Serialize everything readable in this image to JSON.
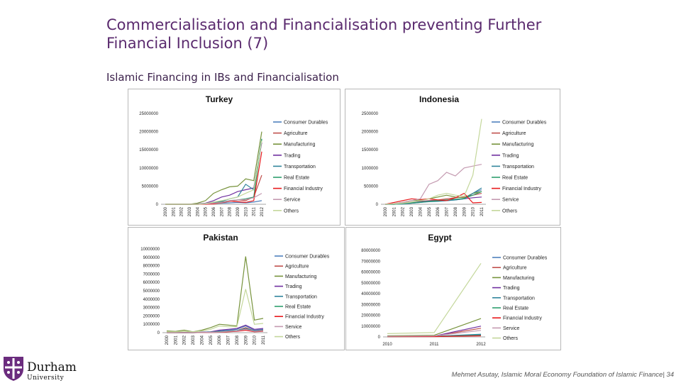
{
  "slide": {
    "title_line1": "Commercialisation and Financialisation preventing Further",
    "title_line2": "Financial Inclusion (7)",
    "subtitle": "Islamic Financing in IBs and Financialisation",
    "footer": "Mehmet Asutay, Islamic Moral Economy Foundation of Islamic Finance| 34",
    "logo_name": "Durham",
    "logo_sub": "University"
  },
  "legend": {
    "labels": [
      "Consumer Durables",
      "Agriculture",
      "Manufacturing",
      "Trading",
      "Transportation",
      "Real Estate",
      "Financial Industry",
      "Service",
      "Others"
    ],
    "colors": [
      "#4f81bd",
      "#c0504d",
      "#77933c",
      "#7030a0",
      "#31859c",
      "#2f9e6e",
      "#e8191c",
      "#c49ab0",
      "#c4d79b"
    ]
  },
  "chart_data": [
    {
      "type": "line",
      "title": "Turkey",
      "x": [
        "2000",
        "2001",
        "2002",
        "2003",
        "2004",
        "2005",
        "2006",
        "2007",
        "2008",
        "2009",
        "2010",
        "2011",
        "2012"
      ],
      "yticks": [
        "25000000",
        "20000000",
        "15000000",
        "10000000",
        "5000000",
        "0"
      ],
      "ylim": [
        0,
        25000000
      ],
      "series": [
        {
          "name": "Consumer Durables",
          "values": [
            0,
            0,
            0,
            0,
            0,
            100000,
            200000,
            300000,
            400000,
            500000,
            400000,
            600000,
            1000000
          ]
        },
        {
          "name": "Agriculture",
          "values": [
            0,
            0,
            0,
            0,
            0,
            100000,
            200000,
            400000,
            800000,
            1200000,
            1000000,
            2000000,
            8000000
          ]
        },
        {
          "name": "Manufacturing",
          "values": [
            0,
            0,
            0,
            0,
            300000,
            1000000,
            3000000,
            4000000,
            4800000,
            5000000,
            7000000,
            6500000,
            20000000
          ]
        },
        {
          "name": "Trading",
          "values": [
            0,
            0,
            0,
            0,
            100000,
            300000,
            1000000,
            2000000,
            2500000,
            3500000,
            4000000,
            4500000,
            17000000
          ]
        },
        {
          "name": "Transportation",
          "values": [
            0,
            0,
            0,
            0,
            0,
            200000,
            500000,
            800000,
            1500000,
            2000000,
            5500000,
            4000000,
            18000000
          ]
        },
        {
          "name": "Real Estate",
          "values": [
            0,
            0,
            0,
            0,
            0,
            100000,
            300000,
            600000,
            1000000,
            1200000,
            1500000,
            2000000,
            18000000
          ]
        },
        {
          "name": "Financial Industry",
          "values": [
            0,
            0,
            0,
            0,
            0,
            0,
            100000,
            500000,
            900000,
            700000,
            500000,
            1000000,
            14500000
          ]
        },
        {
          "name": "Service",
          "values": [
            0,
            0,
            0,
            0,
            0,
            100000,
            300000,
            500000,
            1000000,
            1200000,
            1300000,
            1800000,
            3000000
          ]
        },
        {
          "name": "Others",
          "values": [
            0,
            0,
            0,
            0,
            0,
            200000,
            600000,
            1000000,
            1500000,
            2000000,
            3000000,
            4000000,
            17500000
          ]
        }
      ]
    },
    {
      "type": "line",
      "title": "Indonesia",
      "x": [
        "2000",
        "2001",
        "2002",
        "2003",
        "2004",
        "2005",
        "2006",
        "2007",
        "2008",
        "2009",
        "2010",
        "2011"
      ],
      "yticks": [
        "2500000",
        "2000000",
        "1500000",
        "1000000",
        "500000",
        "0"
      ],
      "ylim": [
        0,
        2500000
      ],
      "series": [
        {
          "name": "Consumer Durables",
          "values": [
            0,
            0,
            10000,
            30000,
            50000,
            80000,
            90000,
            100000,
            120000,
            150000,
            300000,
            400000
          ]
        },
        {
          "name": "Agriculture",
          "values": [
            0,
            10000,
            30000,
            60000,
            80000,
            100000,
            120000,
            150000,
            180000,
            200000,
            250000,
            300000
          ]
        },
        {
          "name": "Manufacturing",
          "values": [
            0,
            20000,
            50000,
            100000,
            120000,
            150000,
            200000,
            250000,
            200000,
            180000,
            300000,
            350000
          ]
        },
        {
          "name": "Trading",
          "values": [
            0,
            0,
            20000,
            50000,
            70000,
            90000,
            100000,
            110000,
            130000,
            150000,
            180000,
            200000
          ]
        },
        {
          "name": "Transportation",
          "values": [
            0,
            0,
            10000,
            30000,
            50000,
            70000,
            80000,
            100000,
            120000,
            150000,
            300000,
            450000
          ]
        },
        {
          "name": "Real Estate",
          "values": [
            0,
            0,
            20000,
            40000,
            60000,
            80000,
            100000,
            120000,
            140000,
            160000,
            250000,
            350000
          ]
        },
        {
          "name": "Financial Industry",
          "values": [
            0,
            50000,
            100000,
            150000,
            130000,
            150000,
            120000,
            100000,
            180000,
            300000,
            40000,
            50000
          ]
        },
        {
          "name": "Service",
          "values": [
            0,
            20000,
            50000,
            100000,
            150000,
            550000,
            650000,
            880000,
            780000,
            1000000,
            1050000,
            1100000
          ]
        },
        {
          "name": "Others",
          "values": [
            0,
            10000,
            30000,
            60000,
            100000,
            150000,
            250000,
            300000,
            250000,
            220000,
            800000,
            2350000
          ]
        }
      ]
    },
    {
      "type": "line",
      "title": "Pakistan",
      "x": [
        "2000",
        "2001",
        "2002",
        "2003",
        "2004",
        "2005",
        "2006",
        "2007",
        "2008",
        "2009",
        "2010",
        "2011"
      ],
      "yticks": [
        "10000000",
        "9000000",
        "8000000",
        "7000000",
        "6000000",
        "5000000",
        "4000000",
        "3000000",
        "2000000",
        "1000000",
        "0"
      ],
      "ylim": [
        0,
        10000000
      ],
      "series": [
        {
          "name": "Consumer Durables",
          "values": [
            0,
            0,
            0,
            0,
            50000,
            100000,
            200000,
            300000,
            400000,
            800000,
            300000,
            400000
          ]
        },
        {
          "name": "Agriculture",
          "values": [
            0,
            0,
            0,
            0,
            30000,
            50000,
            100000,
            200000,
            250000,
            600000,
            200000,
            300000
          ]
        },
        {
          "name": "Manufacturing",
          "values": [
            200000,
            150000,
            300000,
            100000,
            300000,
            600000,
            1000000,
            900000,
            800000,
            9100000,
            1500000,
            1700000
          ]
        },
        {
          "name": "Trading",
          "values": [
            0,
            0,
            0,
            0,
            50000,
            100000,
            300000,
            400000,
            500000,
            900000,
            400000,
            500000
          ]
        },
        {
          "name": "Transportation",
          "values": [
            0,
            0,
            0,
            0,
            30000,
            80000,
            150000,
            200000,
            250000,
            500000,
            200000,
            250000
          ]
        },
        {
          "name": "Real Estate",
          "values": [
            0,
            0,
            0,
            0,
            20000,
            60000,
            100000,
            150000,
            200000,
            400000,
            150000,
            200000
          ]
        },
        {
          "name": "Financial Industry",
          "values": [
            0,
            0,
            0,
            0,
            10000,
            30000,
            50000,
            100000,
            150000,
            300000,
            100000,
            150000
          ]
        },
        {
          "name": "Service",
          "values": [
            0,
            0,
            0,
            0,
            20000,
            40000,
            80000,
            150000,
            200000,
            400000,
            150000,
            200000
          ]
        },
        {
          "name": "Others",
          "values": [
            100000,
            100000,
            150000,
            100000,
            200000,
            400000,
            800000,
            700000,
            700000,
            5200000,
            1000000,
            1100000
          ]
        }
      ]
    },
    {
      "type": "line",
      "title": "Egypt",
      "x": [
        "2010",
        "2011",
        "2012"
      ],
      "yticks": [
        "80000000",
        "70000000",
        "60000000",
        "50000000",
        "40000000",
        "30000000",
        "20000000",
        "10000000",
        "0"
      ],
      "ylim": [
        0,
        80000000
      ],
      "series": [
        {
          "name": "Consumer Durables",
          "values": [
            500000,
            600000,
            2000000
          ]
        },
        {
          "name": "Agriculture",
          "values": [
            500000,
            800000,
            8000000
          ]
        },
        {
          "name": "Manufacturing",
          "values": [
            1000000,
            1500000,
            17000000
          ]
        },
        {
          "name": "Trading",
          "values": [
            500000,
            800000,
            10000000
          ]
        },
        {
          "name": "Transportation",
          "values": [
            300000,
            500000,
            2500000
          ]
        },
        {
          "name": "Real Estate",
          "values": [
            200000,
            400000,
            1500000
          ]
        },
        {
          "name": "Financial Industry",
          "values": [
            200000,
            300000,
            1000000
          ]
        },
        {
          "name": "Service",
          "values": [
            500000,
            900000,
            6000000
          ]
        },
        {
          "name": "Others",
          "values": [
            3000000,
            4000000,
            68000000
          ]
        }
      ]
    }
  ]
}
